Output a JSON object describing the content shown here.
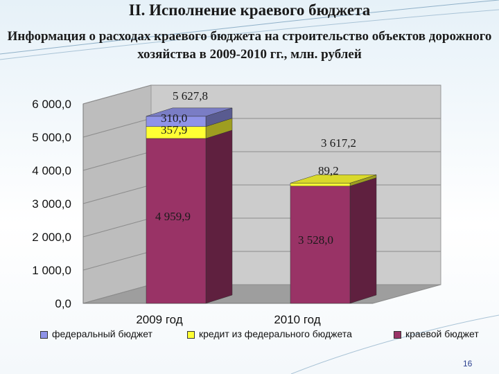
{
  "slide": {
    "title": "II. Исполнение краевого бюджета",
    "subtitle": "Информация о расходах краевого бюджета на строительство объектов дорожного хозяйства в 2009-2010 гг., млн. рублей",
    "page_number": "16"
  },
  "colors": {
    "federal": "#8f93e8",
    "credit": "#ffff33",
    "regional": "#993366",
    "plot_back": "#c8c8c8"
  },
  "chart_data": {
    "type": "bar",
    "stacked": true,
    "three_d": true,
    "categories": [
      "2009 год",
      "2010 год"
    ],
    "series": [
      {
        "name": "краевой бюджет",
        "values": [
          4959.9,
          3528.0
        ],
        "labels": [
          "4 959,9",
          "3 528,0"
        ],
        "color": "#993366"
      },
      {
        "name": "кредит из федерального бюджета",
        "values": [
          357.9,
          89.2
        ],
        "labels": [
          "357,9",
          "89,2"
        ],
        "color": "#ffff33"
      },
      {
        "name": "федеральный бюджет",
        "values": [
          310.0,
          0
        ],
        "labels": [
          "310,0",
          ""
        ],
        "color": "#8f93e8"
      }
    ],
    "totals": [
      5627.8,
      3617.2
    ],
    "total_labels": [
      "5 627,8",
      "3 617,2"
    ],
    "ylim": [
      0,
      6000
    ],
    "yticks": [
      0,
      1000,
      2000,
      3000,
      4000,
      5000,
      6000
    ],
    "ytick_labels": [
      "0,0",
      "1 000,0",
      "2 000,0",
      "3 000,0",
      "4 000,0",
      "5 000,0",
      "6 000,0"
    ],
    "legend": {
      "position": "bottom",
      "entries": [
        {
          "label": "федеральный бюджет",
          "color": "#8f93e8"
        },
        {
          "label": "кредит из федерального бюджета",
          "color": "#ffff33"
        },
        {
          "label": "краевой бюджет",
          "color": "#993366"
        }
      ]
    },
    "grid": true
  }
}
